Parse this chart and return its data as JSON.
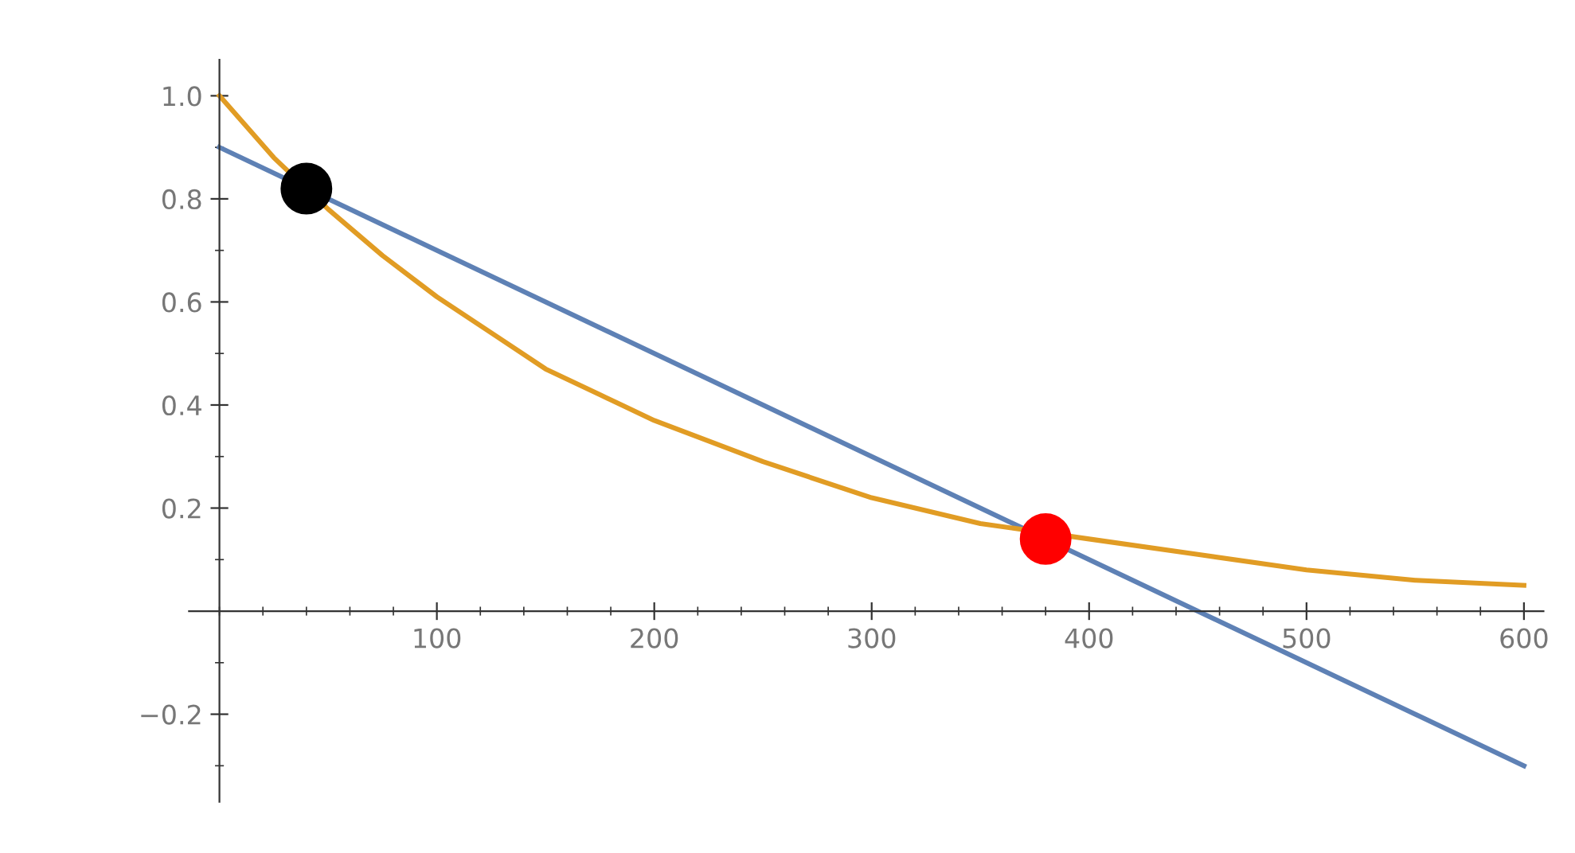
{
  "chart_data": {
    "type": "line",
    "xlim": [
      -14,
      609
    ],
    "ylim": [
      -0.37,
      1.07
    ],
    "xticks": [
      100,
      200,
      300,
      400,
      500,
      600
    ],
    "yticks": [
      -0.2,
      0.2,
      0.4,
      0.6,
      0.8,
      {
        "value": 1.0,
        "label": "1.0"
      }
    ],
    "grid": false,
    "legend": false,
    "marker": "none",
    "line_style": "solid",
    "series": [
      {
        "color": "#5e81b5",
        "x": [
          0,
          600
        ],
        "values": [
          0.9,
          -0.3
        ]
      },
      {
        "color": "#e19c24",
        "x": [
          0,
          25,
          50,
          75,
          100,
          125,
          150,
          175,
          200,
          250,
          300,
          350,
          400,
          450,
          500,
          550,
          600
        ],
        "values": [
          1.0,
          0.88,
          0.78,
          0.69,
          0.61,
          0.54,
          0.47,
          0.42,
          0.37,
          0.29,
          0.22,
          0.17,
          0.14,
          0.11,
          0.08,
          0.06,
          0.05
        ]
      },
      {
        "type": "scatter",
        "color": "#000000",
        "marker": "circle",
        "x": [
          40
        ],
        "values": [
          0.82
        ]
      },
      {
        "type": "scatter",
        "color": "#ff0000",
        "marker": "circle",
        "x": [
          380
        ],
        "values": [
          0.14
        ]
      }
    ]
  }
}
